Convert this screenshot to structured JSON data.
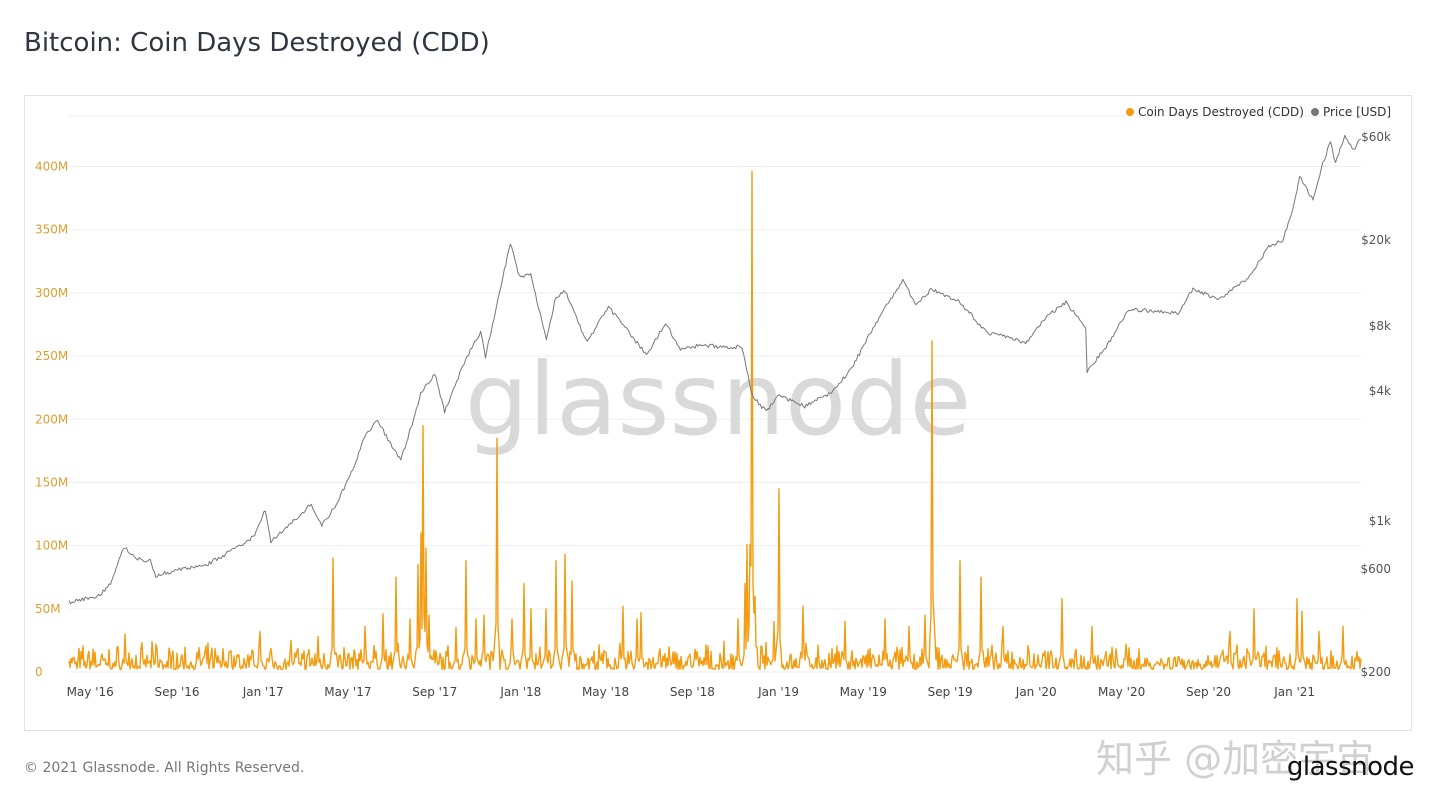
{
  "header": {
    "title": "Bitcoin: Coin Days Destroyed (CDD)"
  },
  "footer": {
    "copyright": "© 2021 Glassnode. All Rights Reserved.",
    "brand": "glassnode",
    "overlay_watermark": "知乎 @加密宇宙"
  },
  "chart_data": {
    "type": "line",
    "title": "",
    "watermark": "glassnode",
    "legend": {
      "placement": "top-right",
      "entries": [
        "Coin Days Destroyed (CDD)",
        "Price [USD]"
      ]
    },
    "colors": {
      "cdd": "#f39c12",
      "price": "#777777",
      "grid": "#efefef",
      "left_axis_text": "#d9a030",
      "right_axis_text": "#555555"
    },
    "grid": true,
    "x": {
      "range": [
        "2016-04-01",
        "2021-04-05"
      ],
      "tick_labels": [
        "May '16",
        "Sep '16",
        "Jan '17",
        "May '17",
        "Sep '17",
        "Jan '18",
        "May '18",
        "Sep '18",
        "Jan '19",
        "May '19",
        "Sep '19",
        "Jan '20",
        "May '20",
        "Sep '20",
        "Jan '21"
      ],
      "tick_dates": [
        "2016-05-01",
        "2016-09-01",
        "2017-01-01",
        "2017-05-01",
        "2017-09-01",
        "2018-01-01",
        "2018-05-01",
        "2018-09-01",
        "2019-01-01",
        "2019-05-01",
        "2019-09-01",
        "2020-01-01",
        "2020-05-01",
        "2020-09-01",
        "2021-01-01"
      ]
    },
    "y_left": {
      "label": "",
      "scale": "linear",
      "range": [
        0,
        440000000
      ],
      "tick_labels": [
        "0",
        "50M",
        "100M",
        "150M",
        "200M",
        "250M",
        "300M",
        "350M",
        "400M"
      ],
      "tick_values": [
        0,
        50000000,
        100000000,
        150000000,
        200000000,
        250000000,
        300000000,
        350000000,
        400000000
      ]
    },
    "y_right": {
      "label": "",
      "scale": "log",
      "range": [
        200,
        75000
      ],
      "tick_labels": [
        "$200",
        "$600",
        "$1k",
        "$4k",
        "$8k",
        "$20k",
        "$60k"
      ],
      "tick_values": [
        200,
        600,
        1000,
        4000,
        8000,
        20000,
        60000
      ]
    },
    "series": [
      {
        "name": "Coin Days Destroyed (CDD)",
        "axis": "left",
        "baseline_range": [
          2000000,
          16000000
        ],
        "points": [
          [
            "2016-04-01",
            9000000
          ],
          [
            "2016-05-05",
            18000000
          ],
          [
            "2016-06-20",
            30000000
          ],
          [
            "2016-08-02",
            22000000
          ],
          [
            "2016-11-15",
            16000000
          ],
          [
            "2016-12-28",
            32000000
          ],
          [
            "2017-02-10",
            25000000
          ],
          [
            "2017-03-20",
            28000000
          ],
          [
            "2017-04-10",
            90000000
          ],
          [
            "2017-05-25",
            36000000
          ],
          [
            "2017-06-20",
            46000000
          ],
          [
            "2017-07-08",
            75000000
          ],
          [
            "2017-07-28",
            42000000
          ],
          [
            "2017-08-08",
            85000000
          ],
          [
            "2017-08-12",
            110000000
          ],
          [
            "2017-08-16",
            195000000
          ],
          [
            "2017-08-20",
            98000000
          ],
          [
            "2017-08-24",
            45000000
          ],
          [
            "2017-10-01",
            35000000
          ],
          [
            "2017-10-15",
            88000000
          ],
          [
            "2017-10-30",
            42000000
          ],
          [
            "2017-11-10",
            45000000
          ],
          [
            "2017-11-28",
            185000000
          ],
          [
            "2017-12-20",
            42000000
          ],
          [
            "2018-01-05",
            70000000
          ],
          [
            "2018-01-15",
            50000000
          ],
          [
            "2018-02-05",
            50000000
          ],
          [
            "2018-02-20",
            88000000
          ],
          [
            "2018-03-05",
            93000000
          ],
          [
            "2018-03-15",
            72000000
          ],
          [
            "2018-05-25",
            52000000
          ],
          [
            "2018-06-15",
            42000000
          ],
          [
            "2018-06-20",
            47000000
          ],
          [
            "2018-09-05",
            18000000
          ],
          [
            "2018-11-05",
            42000000
          ],
          [
            "2018-11-15",
            70000000
          ],
          [
            "2018-11-18",
            101000000
          ],
          [
            "2018-11-21",
            101000000
          ],
          [
            "2018-11-24",
            396000000
          ],
          [
            "2018-11-28",
            60000000
          ],
          [
            "2018-12-25",
            40000000
          ],
          [
            "2019-01-01",
            145000000
          ],
          [
            "2019-02-05",
            52000000
          ],
          [
            "2019-04-05",
            40000000
          ],
          [
            "2019-06-01",
            42000000
          ],
          [
            "2019-07-05",
            36000000
          ],
          [
            "2019-07-28",
            45000000
          ],
          [
            "2019-08-07",
            262000000
          ],
          [
            "2019-09-15",
            88000000
          ],
          [
            "2019-10-15",
            75000000
          ],
          [
            "2019-11-15",
            36000000
          ],
          [
            "2020-02-06",
            58000000
          ],
          [
            "2020-03-20",
            36000000
          ],
          [
            "2020-10-01",
            32000000
          ],
          [
            "2020-11-05",
            50000000
          ],
          [
            "2021-01-05",
            58000000
          ],
          [
            "2021-01-12",
            48000000
          ],
          [
            "2021-02-05",
            32000000
          ],
          [
            "2021-03-10",
            36000000
          ]
        ]
      },
      {
        "name": "Price [USD]",
        "axis": "right",
        "points": [
          [
            "2016-04-01",
            420
          ],
          [
            "2016-05-15",
            455
          ],
          [
            "2016-06-01",
            530
          ],
          [
            "2016-06-17",
            760
          ],
          [
            "2016-07-05",
            670
          ],
          [
            "2016-07-25",
            655
          ],
          [
            "2016-08-02",
            560
          ],
          [
            "2016-09-15",
            605
          ],
          [
            "2016-10-15",
            635
          ],
          [
            "2016-11-15",
            720
          ],
          [
            "2016-12-20",
            850
          ],
          [
            "2017-01-04",
            1130
          ],
          [
            "2017-01-12",
            800
          ],
          [
            "2017-02-15",
            1010
          ],
          [
            "2017-03-10",
            1200
          ],
          [
            "2017-03-25",
            950
          ],
          [
            "2017-04-15",
            1200
          ],
          [
            "2017-05-10",
            1800
          ],
          [
            "2017-05-25",
            2500
          ],
          [
            "2017-06-12",
            2900
          ],
          [
            "2017-07-15",
            1900
          ],
          [
            "2017-07-31",
            2800
          ],
          [
            "2017-08-12",
            3900
          ],
          [
            "2017-09-01",
            4800
          ],
          [
            "2017-09-15",
            3200
          ],
          [
            "2017-10-15",
            5600
          ],
          [
            "2017-11-05",
            7500
          ],
          [
            "2017-11-12",
            5800
          ],
          [
            "2017-11-28",
            9900
          ],
          [
            "2017-12-17",
            19500
          ],
          [
            "2017-12-30",
            13500
          ],
          [
            "2018-01-15",
            13800
          ],
          [
            "2018-02-06",
            6900
          ],
          [
            "2018-02-20",
            11000
          ],
          [
            "2018-03-05",
            11500
          ],
          [
            "2018-04-05",
            6700
          ],
          [
            "2018-05-05",
            9800
          ],
          [
            "2018-06-28",
            5900
          ],
          [
            "2018-07-25",
            8200
          ],
          [
            "2018-08-15",
            6300
          ],
          [
            "2018-09-15",
            6500
          ],
          [
            "2018-10-15",
            6400
          ],
          [
            "2018-11-10",
            6400
          ],
          [
            "2018-11-25",
            3800
          ],
          [
            "2018-12-15",
            3200
          ],
          [
            "2018-12-31",
            3800
          ],
          [
            "2019-02-07",
            3400
          ],
          [
            "2019-03-15",
            3900
          ],
          [
            "2019-04-15",
            5100
          ],
          [
            "2019-05-15",
            7900
          ],
          [
            "2019-06-26",
            13000
          ],
          [
            "2019-07-15",
            10000
          ],
          [
            "2019-08-05",
            11800
          ],
          [
            "2019-09-15",
            10300
          ],
          [
            "2019-10-24",
            7400
          ],
          [
            "2019-11-25",
            7100
          ],
          [
            "2019-12-17",
            6600
          ],
          [
            "2020-01-15",
            8800
          ],
          [
            "2020-02-12",
            10300
          ],
          [
            "2020-03-11",
            7900
          ],
          [
            "2020-03-13",
            4900
          ],
          [
            "2020-04-15",
            6800
          ],
          [
            "2020-05-10",
            9500
          ],
          [
            "2020-06-15",
            9400
          ],
          [
            "2020-07-20",
            9200
          ],
          [
            "2020-08-10",
            11800
          ],
          [
            "2020-09-15",
            10700
          ],
          [
            "2020-10-25",
            13000
          ],
          [
            "2020-11-25",
            18500
          ],
          [
            "2020-12-15",
            20000
          ],
          [
            "2020-12-31",
            29000
          ],
          [
            "2021-01-08",
            40000
          ],
          [
            "2021-01-27",
            30400
          ],
          [
            "2021-02-10",
            45000
          ],
          [
            "2021-02-21",
            57000
          ],
          [
            "2021-02-28",
            45000
          ],
          [
            "2021-03-13",
            61000
          ],
          [
            "2021-03-25",
            52500
          ],
          [
            "2021-04-05",
            58700
          ]
        ]
      }
    ]
  }
}
